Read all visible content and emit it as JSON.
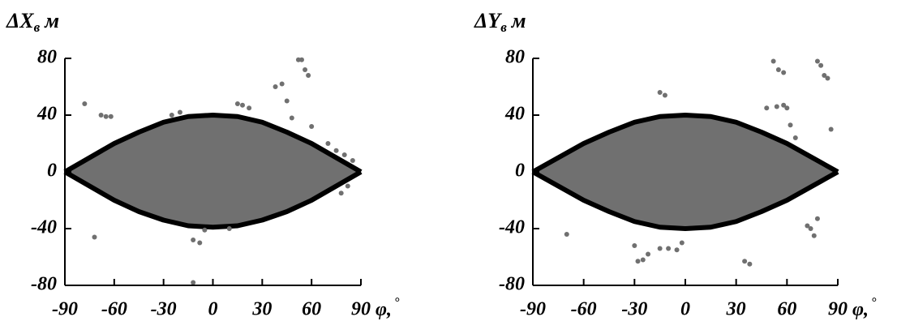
{
  "chart_data": [
    {
      "type": "scatter",
      "title": "ΔX",
      "title_sub": "в",
      "title_unit": "м",
      "xlabel": "φ,",
      "xlabel_sup": "°",
      "xlim": [
        -90,
        90
      ],
      "xticks": [
        -90,
        -60,
        -30,
        0,
        30,
        60,
        90
      ],
      "ylim": [
        -80,
        80
      ],
      "yticks": [
        -80,
        -40,
        0,
        40,
        80
      ],
      "envelope": {
        "color": "#000000",
        "fill": "#707070",
        "x": [
          -90,
          -75,
          -60,
          -45,
          -30,
          -15,
          0,
          15,
          30,
          45,
          60,
          75,
          90
        ],
        "upper": [
          0,
          10,
          20,
          28,
          35,
          39,
          40,
          39,
          35,
          28,
          20,
          10,
          0
        ],
        "lower": [
          0,
          -10,
          -20,
          -28,
          -34,
          -38,
          -39,
          -38,
          -34,
          -28,
          -20,
          -10,
          0
        ]
      },
      "series": [
        {
          "color": "#707070",
          "x": [
            -78,
            -68,
            -65,
            -62,
            -72,
            -12,
            -8,
            -12,
            15,
            18,
            22,
            38,
            42,
            45,
            52,
            54,
            56,
            58,
            48,
            60,
            70,
            75,
            80,
            85,
            82,
            78,
            -20,
            -25,
            10,
            -5
          ],
          "values": [
            48,
            40,
            39,
            39,
            -46,
            -48,
            -50,
            -78,
            48,
            47,
            45,
            60,
            62,
            50,
            79,
            79,
            72,
            68,
            38,
            32,
            20,
            15,
            12,
            8,
            -10,
            -15,
            42,
            40,
            -40,
            -41
          ]
        }
      ]
    },
    {
      "type": "scatter",
      "title": "ΔY",
      "title_sub": "в",
      "title_unit": "м",
      "xlabel": "φ,",
      "xlabel_sup": "°",
      "xlim": [
        -90,
        90
      ],
      "xticks": [
        -90,
        -60,
        -30,
        0,
        30,
        60,
        90
      ],
      "ylim": [
        -80,
        80
      ],
      "yticks": [
        -80,
        -40,
        0,
        40,
        80
      ],
      "envelope": {
        "color": "#000000",
        "fill": "#707070",
        "x": [
          -90,
          -75,
          -60,
          -45,
          -30,
          -15,
          0,
          15,
          30,
          45,
          60,
          75,
          90
        ],
        "upper": [
          0,
          10,
          20,
          28,
          35,
          39,
          40,
          39,
          35,
          28,
          20,
          10,
          0
        ],
        "lower": [
          0,
          -10,
          -20,
          -28,
          -35,
          -39,
          -40,
          -39,
          -35,
          -28,
          -20,
          -10,
          0
        ]
      },
      "series": [
        {
          "color": "#707070",
          "x": [
            -30,
            -28,
            -25,
            -22,
            -15,
            -10,
            -5,
            -2,
            -15,
            -12,
            -70,
            52,
            55,
            58,
            54,
            58,
            60,
            78,
            80,
            82,
            84,
            86,
            72,
            74,
            76,
            78,
            35,
            38,
            48,
            62,
            65
          ],
          "values": [
            -52,
            -63,
            -62,
            -58,
            -54,
            -54,
            -55,
            -50,
            56,
            54,
            -44,
            78,
            72,
            70,
            46,
            47,
            45,
            78,
            75,
            68,
            66,
            30,
            -38,
            -40,
            -45,
            -33,
            -63,
            -65,
            45,
            33,
            24
          ]
        }
      ]
    }
  ]
}
